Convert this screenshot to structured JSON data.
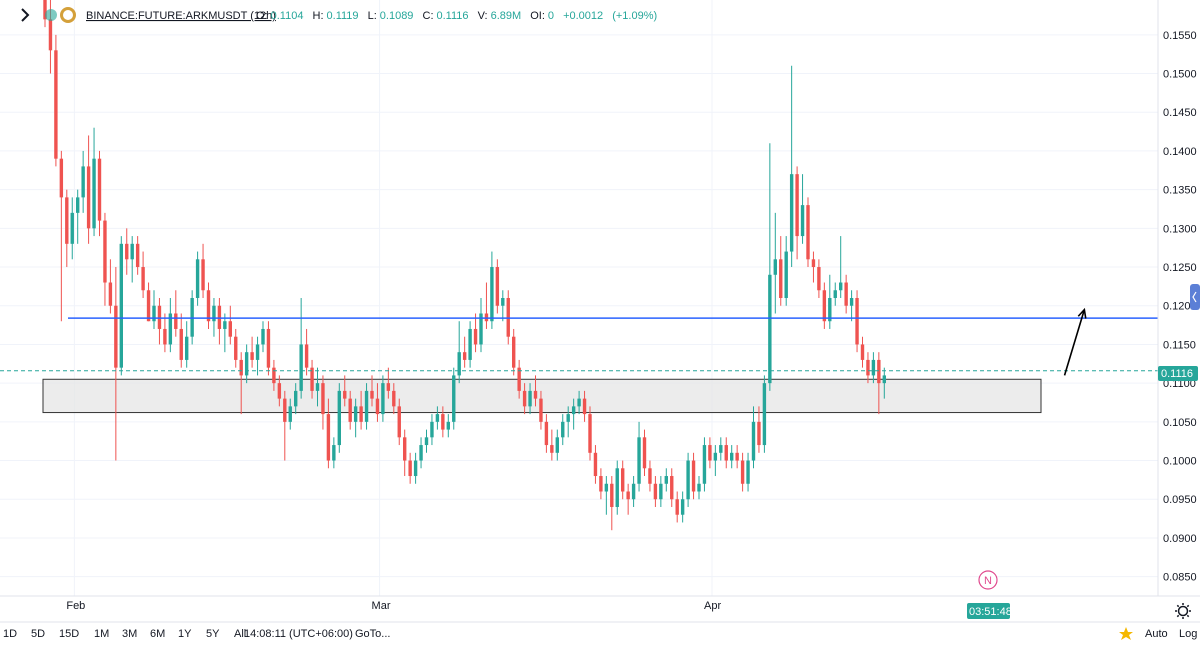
{
  "header": {
    "symbol": "BINANCE:FUTURE:ARKMUSDT (12h)",
    "o_label": "O:",
    "o_value": "0.1104",
    "h_label": "H:",
    "h_value": "0.1119",
    "l_label": "L:",
    "l_value": "0.1089",
    "c_label": "C:",
    "c_value": "0.1116",
    "v_label": "V:",
    "v_value": "6.89M",
    "oi_label": "OI:",
    "oi_value": "0",
    "change": "+0.0012",
    "change_pct": "(+1.09%)",
    "collapse_icon": "chevron-right-icon"
  },
  "colors": {
    "up": "#26a69a",
    "down": "#ef5350",
    "support_line": "#2962ff",
    "price_line": "#26a69a",
    "zone_fill": "#e6e6e6",
    "zone_stroke": "#333333",
    "grid": "#f0f3fa",
    "arrow": "#000000"
  },
  "bottom_toolbar": {
    "ranges": [
      "1D",
      "5D",
      "15D",
      "1M",
      "3M",
      "6M",
      "1Y",
      "5Y",
      "All"
    ],
    "time": "14:08:11 (UTC+06:00)",
    "goto": "GoTo...",
    "auto": "Auto",
    "log": "Log"
  },
  "price_badge": "0.1116",
  "countdown": "03:51:48",
  "news_badge": "N",
  "chart_data": {
    "type": "candlestick",
    "symbol": "BINANCE:FUTURE:ARKMUSDT",
    "interval": "12h",
    "y_ticks": [
      "0.1550",
      "0.1500",
      "0.1450",
      "0.1400",
      "0.1350",
      "0.1300",
      "0.1250",
      "0.1200",
      "0.1150",
      "0.1100",
      "0.1050",
      "0.1000",
      "0.0950",
      "0.0900",
      "0.0850"
    ],
    "ylim": [
      0.0825,
      0.1595
    ],
    "x_ticks": [
      {
        "label": "Feb",
        "index": 3
      },
      {
        "label": "Mar",
        "index": 59
      },
      {
        "label": "Apr",
        "index": 120
      }
    ],
    "support_level": 0.1184,
    "current_price": 0.1116,
    "zone": [
      0.1062,
      0.1105
    ],
    "arrow": {
      "from_index": 179,
      "from": 0.111,
      "to_index": 183,
      "to": 0.1195
    },
    "candles": [
      [
        0.165,
        0.166,
        0.156,
        0.157
      ],
      [
        0.157,
        0.16,
        0.15,
        0.153
      ],
      [
        0.153,
        0.155,
        0.138,
        0.139
      ],
      [
        0.139,
        0.14,
        0.118,
        0.134
      ],
      [
        0.134,
        0.135,
        0.125,
        0.128
      ],
      [
        0.128,
        0.134,
        0.126,
        0.132
      ],
      [
        0.132,
        0.135,
        0.128,
        0.134
      ],
      [
        0.134,
        0.14,
        0.132,
        0.138
      ],
      [
        0.138,
        0.142,
        0.128,
        0.13
      ],
      [
        0.13,
        0.143,
        0.129,
        0.139
      ],
      [
        0.139,
        0.14,
        0.129,
        0.131
      ],
      [
        0.131,
        0.132,
        0.12,
        0.123
      ],
      [
        0.123,
        0.126,
        0.119,
        0.12
      ],
      [
        0.12,
        0.125,
        0.1,
        0.112
      ],
      [
        0.112,
        0.129,
        0.111,
        0.128
      ],
      [
        0.128,
        0.13,
        0.124,
        0.126
      ],
      [
        0.126,
        0.129,
        0.123,
        0.128
      ],
      [
        0.128,
        0.129,
        0.124,
        0.125
      ],
      [
        0.125,
        0.127,
        0.121,
        0.122
      ],
      [
        0.122,
        0.123,
        0.118,
        0.118
      ],
      [
        0.118,
        0.122,
        0.117,
        0.12
      ],
      [
        0.12,
        0.121,
        0.115,
        0.117
      ],
      [
        0.117,
        0.119,
        0.114,
        0.115
      ],
      [
        0.115,
        0.121,
        0.114,
        0.119
      ],
      [
        0.119,
        0.122,
        0.116,
        0.117
      ],
      [
        0.117,
        0.119,
        0.112,
        0.113
      ],
      [
        0.113,
        0.118,
        0.112,
        0.116
      ],
      [
        0.116,
        0.122,
        0.115,
        0.121
      ],
      [
        0.121,
        0.127,
        0.12,
        0.126
      ],
      [
        0.126,
        0.128,
        0.121,
        0.122
      ],
      [
        0.122,
        0.123,
        0.117,
        0.118
      ],
      [
        0.118,
        0.121,
        0.116,
        0.12
      ],
      [
        0.12,
        0.121,
        0.115,
        0.117
      ],
      [
        0.117,
        0.119,
        0.114,
        0.118
      ],
      [
        0.118,
        0.12,
        0.115,
        0.116
      ],
      [
        0.116,
        0.117,
        0.112,
        0.113
      ],
      [
        0.113,
        0.114,
        0.106,
        0.111
      ],
      [
        0.111,
        0.115,
        0.11,
        0.114
      ],
      [
        0.114,
        0.116,
        0.112,
        0.113
      ],
      [
        0.113,
        0.116,
        0.111,
        0.115
      ],
      [
        0.115,
        0.118,
        0.114,
        0.117
      ],
      [
        0.117,
        0.118,
        0.111,
        0.112
      ],
      [
        0.112,
        0.113,
        0.109,
        0.11
      ],
      [
        0.11,
        0.111,
        0.107,
        0.108
      ],
      [
        0.108,
        0.109,
        0.1,
        0.105
      ],
      [
        0.105,
        0.108,
        0.104,
        0.107
      ],
      [
        0.107,
        0.11,
        0.106,
        0.109
      ],
      [
        0.109,
        0.121,
        0.108,
        0.115
      ],
      [
        0.115,
        0.117,
        0.111,
        0.112
      ],
      [
        0.112,
        0.113,
        0.108,
        0.109
      ],
      [
        0.109,
        0.112,
        0.107,
        0.11
      ],
      [
        0.11,
        0.111,
        0.104,
        0.106
      ],
      [
        0.106,
        0.108,
        0.099,
        0.1
      ],
      [
        0.1,
        0.103,
        0.099,
        0.102
      ],
      [
        0.102,
        0.11,
        0.101,
        0.109
      ],
      [
        0.109,
        0.111,
        0.107,
        0.108
      ],
      [
        0.108,
        0.109,
        0.104,
        0.105
      ],
      [
        0.105,
        0.108,
        0.103,
        0.107
      ],
      [
        0.107,
        0.109,
        0.104,
        0.105
      ],
      [
        0.105,
        0.11,
        0.104,
        0.109
      ],
      [
        0.109,
        0.111,
        0.107,
        0.108
      ],
      [
        0.108,
        0.11,
        0.105,
        0.106
      ],
      [
        0.106,
        0.111,
        0.105,
        0.11
      ],
      [
        0.11,
        0.112,
        0.108,
        0.109
      ],
      [
        0.109,
        0.11,
        0.106,
        0.107
      ],
      [
        0.107,
        0.108,
        0.102,
        0.103
      ],
      [
        0.103,
        0.104,
        0.098,
        0.1
      ],
      [
        0.1,
        0.101,
        0.097,
        0.098
      ],
      [
        0.098,
        0.101,
        0.097,
        0.1
      ],
      [
        0.1,
        0.103,
        0.099,
        0.102
      ],
      [
        0.102,
        0.104,
        0.101,
        0.103
      ],
      [
        0.103,
        0.106,
        0.102,
        0.105
      ],
      [
        0.105,
        0.107,
        0.104,
        0.106
      ],
      [
        0.106,
        0.107,
        0.103,
        0.104
      ],
      [
        0.104,
        0.106,
        0.103,
        0.105
      ],
      [
        0.105,
        0.112,
        0.104,
        0.111
      ],
      [
        0.111,
        0.118,
        0.11,
        0.114
      ],
      [
        0.114,
        0.116,
        0.112,
        0.113
      ],
      [
        0.113,
        0.118,
        0.112,
        0.117
      ],
      [
        0.117,
        0.119,
        0.114,
        0.115
      ],
      [
        0.115,
        0.121,
        0.114,
        0.119
      ],
      [
        0.119,
        0.123,
        0.117,
        0.118
      ],
      [
        0.118,
        0.127,
        0.117,
        0.125
      ],
      [
        0.125,
        0.126,
        0.119,
        0.12
      ],
      [
        0.12,
        0.122,
        0.118,
        0.121
      ],
      [
        0.121,
        0.122,
        0.115,
        0.116
      ],
      [
        0.116,
        0.117,
        0.111,
        0.112
      ],
      [
        0.112,
        0.113,
        0.108,
        0.109
      ],
      [
        0.109,
        0.11,
        0.106,
        0.107
      ],
      [
        0.107,
        0.11,
        0.106,
        0.109
      ],
      [
        0.109,
        0.111,
        0.107,
        0.108
      ],
      [
        0.108,
        0.109,
        0.104,
        0.105
      ],
      [
        0.105,
        0.106,
        0.101,
        0.102
      ],
      [
        0.102,
        0.104,
        0.1,
        0.101
      ],
      [
        0.101,
        0.104,
        0.1,
        0.103
      ],
      [
        0.103,
        0.106,
        0.102,
        0.105
      ],
      [
        0.105,
        0.107,
        0.103,
        0.106
      ],
      [
        0.106,
        0.108,
        0.104,
        0.107
      ],
      [
        0.107,
        0.109,
        0.106,
        0.108
      ],
      [
        0.108,
        0.109,
        0.105,
        0.106
      ],
      [
        0.106,
        0.107,
        0.1,
        0.101
      ],
      [
        0.101,
        0.102,
        0.097,
        0.098
      ],
      [
        0.098,
        0.099,
        0.095,
        0.096
      ],
      [
        0.096,
        0.098,
        0.093,
        0.097
      ],
      [
        0.097,
        0.098,
        0.091,
        0.094
      ],
      [
        0.094,
        0.1,
        0.093,
        0.099
      ],
      [
        0.099,
        0.1,
        0.095,
        0.096
      ],
      [
        0.096,
        0.097,
        0.093,
        0.095
      ],
      [
        0.095,
        0.098,
        0.094,
        0.097
      ],
      [
        0.097,
        0.105,
        0.096,
        0.103
      ],
      [
        0.103,
        0.104,
        0.098,
        0.099
      ],
      [
        0.099,
        0.1,
        0.096,
        0.097
      ],
      [
        0.097,
        0.098,
        0.094,
        0.095
      ],
      [
        0.095,
        0.098,
        0.094,
        0.097
      ],
      [
        0.097,
        0.099,
        0.096,
        0.098
      ],
      [
        0.098,
        0.099,
        0.094,
        0.095
      ],
      [
        0.095,
        0.096,
        0.092,
        0.093
      ],
      [
        0.093,
        0.096,
        0.092,
        0.095
      ],
      [
        0.095,
        0.101,
        0.094,
        0.1
      ],
      [
        0.1,
        0.101,
        0.095,
        0.096
      ],
      [
        0.096,
        0.098,
        0.095,
        0.097
      ],
      [
        0.097,
        0.103,
        0.096,
        0.102
      ],
      [
        0.102,
        0.103,
        0.099,
        0.1
      ],
      [
        0.1,
        0.102,
        0.098,
        0.101
      ],
      [
        0.101,
        0.103,
        0.1,
        0.102
      ],
      [
        0.102,
        0.103,
        0.099,
        0.1
      ],
      [
        0.1,
        0.102,
        0.099,
        0.101
      ],
      [
        0.101,
        0.102,
        0.099,
        0.1
      ],
      [
        0.1,
        0.101,
        0.096,
        0.097
      ],
      [
        0.097,
        0.101,
        0.096,
        0.1
      ],
      [
        0.1,
        0.107,
        0.099,
        0.105
      ],
      [
        0.105,
        0.107,
        0.101,
        0.102
      ],
      [
        0.102,
        0.111,
        0.101,
        0.11
      ],
      [
        0.11,
        0.141,
        0.109,
        0.124
      ],
      [
        0.124,
        0.132,
        0.119,
        0.126
      ],
      [
        0.126,
        0.129,
        0.12,
        0.121
      ],
      [
        0.121,
        0.129,
        0.12,
        0.127
      ],
      [
        0.127,
        0.151,
        0.125,
        0.137
      ],
      [
        0.137,
        0.138,
        0.126,
        0.129
      ],
      [
        0.129,
        0.137,
        0.128,
        0.133
      ],
      [
        0.133,
        0.134,
        0.125,
        0.126
      ],
      [
        0.126,
        0.127,
        0.123,
        0.125
      ],
      [
        0.125,
        0.126,
        0.121,
        0.122
      ],
      [
        0.122,
        0.123,
        0.117,
        0.118
      ],
      [
        0.118,
        0.124,
        0.117,
        0.121
      ],
      [
        0.121,
        0.123,
        0.12,
        0.122
      ],
      [
        0.122,
        0.129,
        0.121,
        0.123
      ],
      [
        0.123,
        0.124,
        0.119,
        0.12
      ],
      [
        0.12,
        0.122,
        0.118,
        0.121
      ],
      [
        0.121,
        0.122,
        0.114,
        0.115
      ],
      [
        0.115,
        0.116,
        0.112,
        0.113
      ],
      [
        0.113,
        0.114,
        0.11,
        0.111
      ],
      [
        0.111,
        0.114,
        0.11,
        0.113
      ],
      [
        0.113,
        0.114,
        0.106,
        0.11
      ],
      [
        0.11,
        0.112,
        0.108,
        0.111
      ]
    ]
  }
}
